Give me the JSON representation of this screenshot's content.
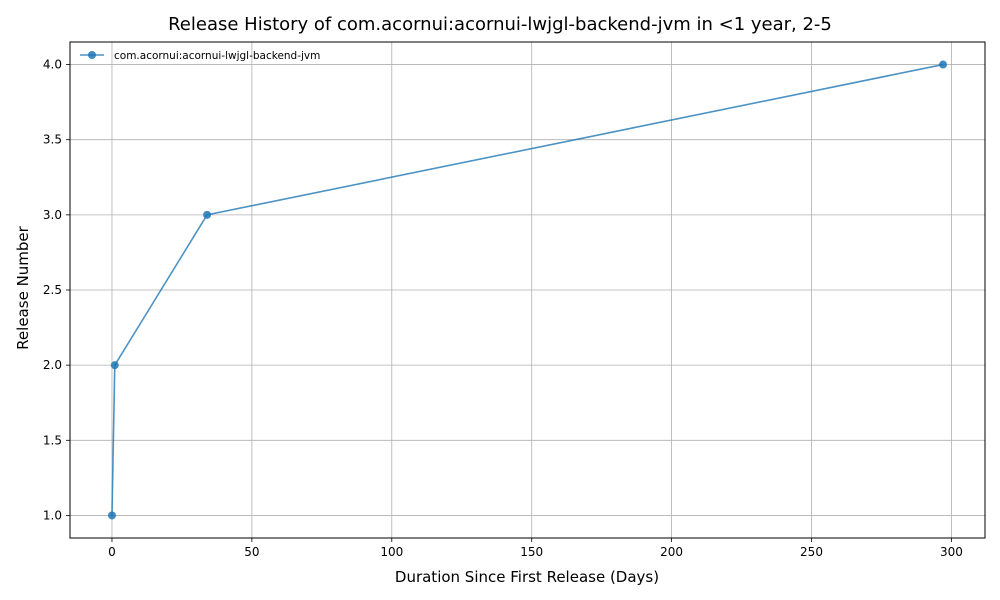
{
  "chart_data": {
    "type": "line",
    "title": "Release History of com.acornui:acornui-lwjgl-backend-jvm in <1 year, 2-5",
    "xlabel": "Duration Since First Release (Days)",
    "ylabel": "Release Number",
    "xlim": [
      -15,
      312
    ],
    "ylim": [
      0.85,
      4.15
    ],
    "xticks": [
      0,
      50,
      100,
      150,
      200,
      250,
      300
    ],
    "yticks": [
      1.0,
      1.5,
      2.0,
      2.5,
      3.0,
      3.5,
      4.0
    ],
    "xtick_labels": [
      "0",
      "50",
      "100",
      "150",
      "200",
      "250",
      "300"
    ],
    "ytick_labels": [
      "1.0",
      "1.5",
      "2.0",
      "2.5",
      "3.0",
      "3.5",
      "4.0"
    ],
    "grid": true,
    "legend_position": "top-left",
    "series": [
      {
        "name": "com.acornui:acornui-lwjgl-backend-jvm",
        "color": "#1f77b4",
        "x": [
          0,
          1,
          34,
          297
        ],
        "y": [
          1,
          2,
          3,
          4
        ]
      }
    ]
  }
}
